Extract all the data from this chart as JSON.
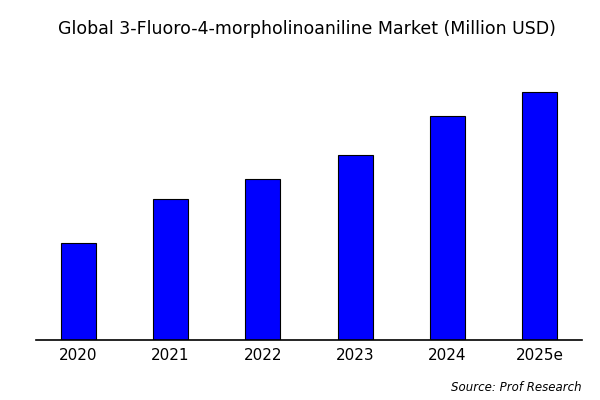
{
  "title": "Global 3-Fluoro-4-morpholinoaniline Market (Million USD)",
  "categories": [
    "2020",
    "2021",
    "2022",
    "2023",
    "2024",
    "2025e"
  ],
  "values": [
    1.0,
    1.45,
    1.65,
    1.9,
    2.3,
    2.55
  ],
  "bar_color": "#0000ff",
  "bar_edgecolor": "#000000",
  "background_color": "#ffffff",
  "source_text": "Source: Prof Research",
  "title_fontsize": 12.5,
  "tick_fontsize": 11,
  "source_fontsize": 8.5,
  "ylim": [
    0,
    3.0
  ],
  "bar_width": 0.38
}
